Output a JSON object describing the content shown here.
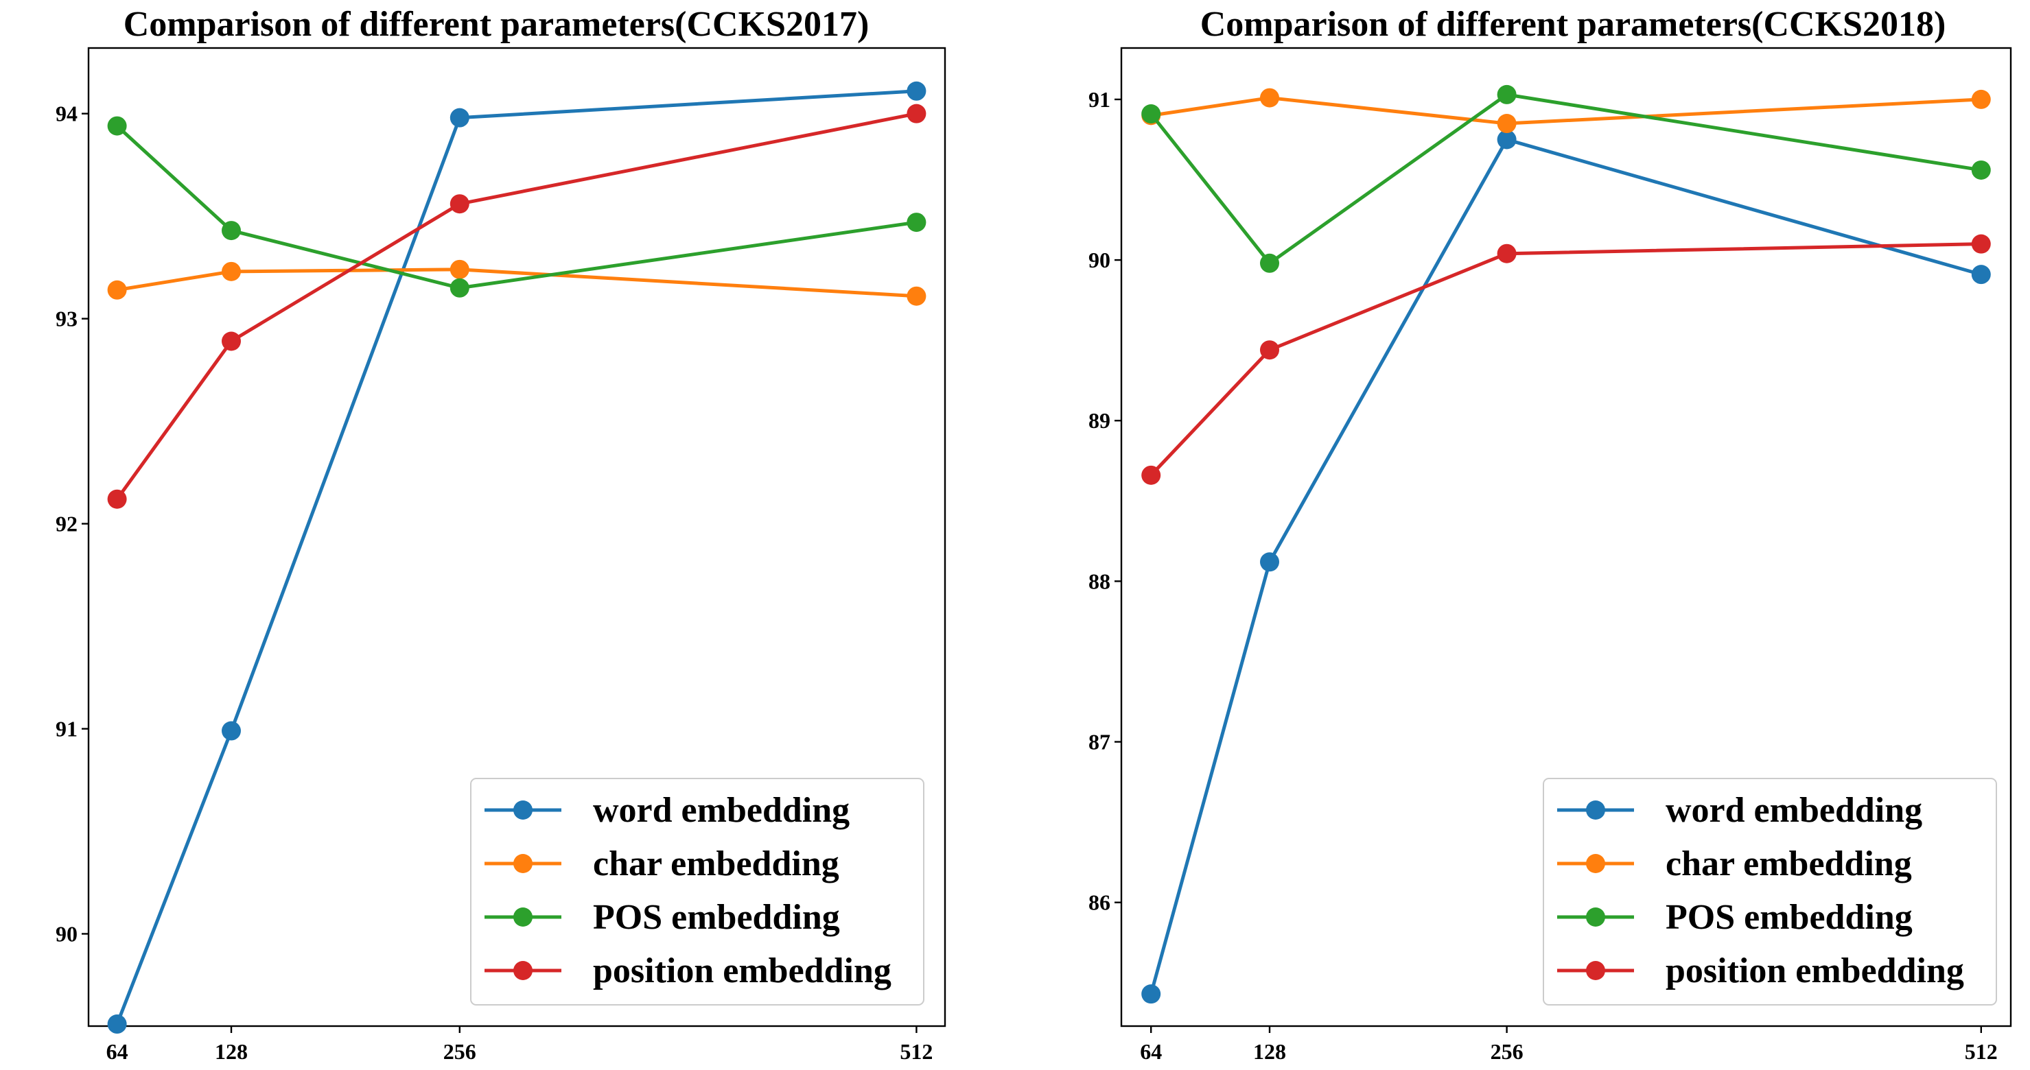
{
  "chart_data": [
    {
      "type": "line",
      "title": "Comparison of different parameters(CCKS2017)",
      "xlabel": "",
      "ylabel": "",
      "x": [
        64,
        128,
        256,
        512
      ],
      "xticks": [
        "64",
        "128",
        "256",
        "512"
      ],
      "xlim": [
        48,
        528
      ],
      "ylim": [
        89.55,
        94.32
      ],
      "yticks": [
        "90",
        "91",
        "92",
        "93",
        "94"
      ],
      "yticks_values": [
        90,
        91,
        92,
        93,
        94
      ],
      "grid": false,
      "legend_position": "lower-right",
      "series": [
        {
          "name": "word embedding",
          "color": "#1f77b4",
          "values": [
            89.56,
            90.99,
            93.98,
            94.11
          ]
        },
        {
          "name": "char embedding",
          "color": "#ff7f0e",
          "values": [
            93.14,
            93.23,
            93.24,
            93.11
          ]
        },
        {
          "name": "POS embedding",
          "color": "#2ca02c",
          "values": [
            93.94,
            93.43,
            93.15,
            93.47
          ]
        },
        {
          "name": "position embedding",
          "color": "#d62728",
          "values": [
            92.12,
            92.89,
            93.56,
            94.0
          ]
        }
      ]
    },
    {
      "type": "line",
      "title": "Comparison of different parameters(CCKS2018)",
      "xlabel": "",
      "ylabel": "",
      "x": [
        64,
        128,
        256,
        512
      ],
      "xticks": [
        "64",
        "128",
        "256",
        "512"
      ],
      "xlim": [
        48,
        528
      ],
      "ylim": [
        85.23,
        91.32
      ],
      "yticks": [
        "86",
        "87",
        "88",
        "89",
        "90",
        "91"
      ],
      "yticks_values": [
        86,
        87,
        88,
        89,
        90,
        91
      ],
      "grid": false,
      "legend_position": "lower-right",
      "series": [
        {
          "name": "word embedding",
          "color": "#1f77b4",
          "values": [
            85.43,
            88.12,
            90.75,
            89.91
          ]
        },
        {
          "name": "char embedding",
          "color": "#ff7f0e",
          "values": [
            90.9,
            91.01,
            90.85,
            91.0
          ]
        },
        {
          "name": "POS embedding",
          "color": "#2ca02c",
          "values": [
            90.91,
            89.98,
            91.03,
            90.56
          ]
        },
        {
          "name": "position embedding",
          "color": "#d62728",
          "values": [
            88.66,
            89.44,
            90.04,
            90.1
          ]
        }
      ]
    }
  ]
}
